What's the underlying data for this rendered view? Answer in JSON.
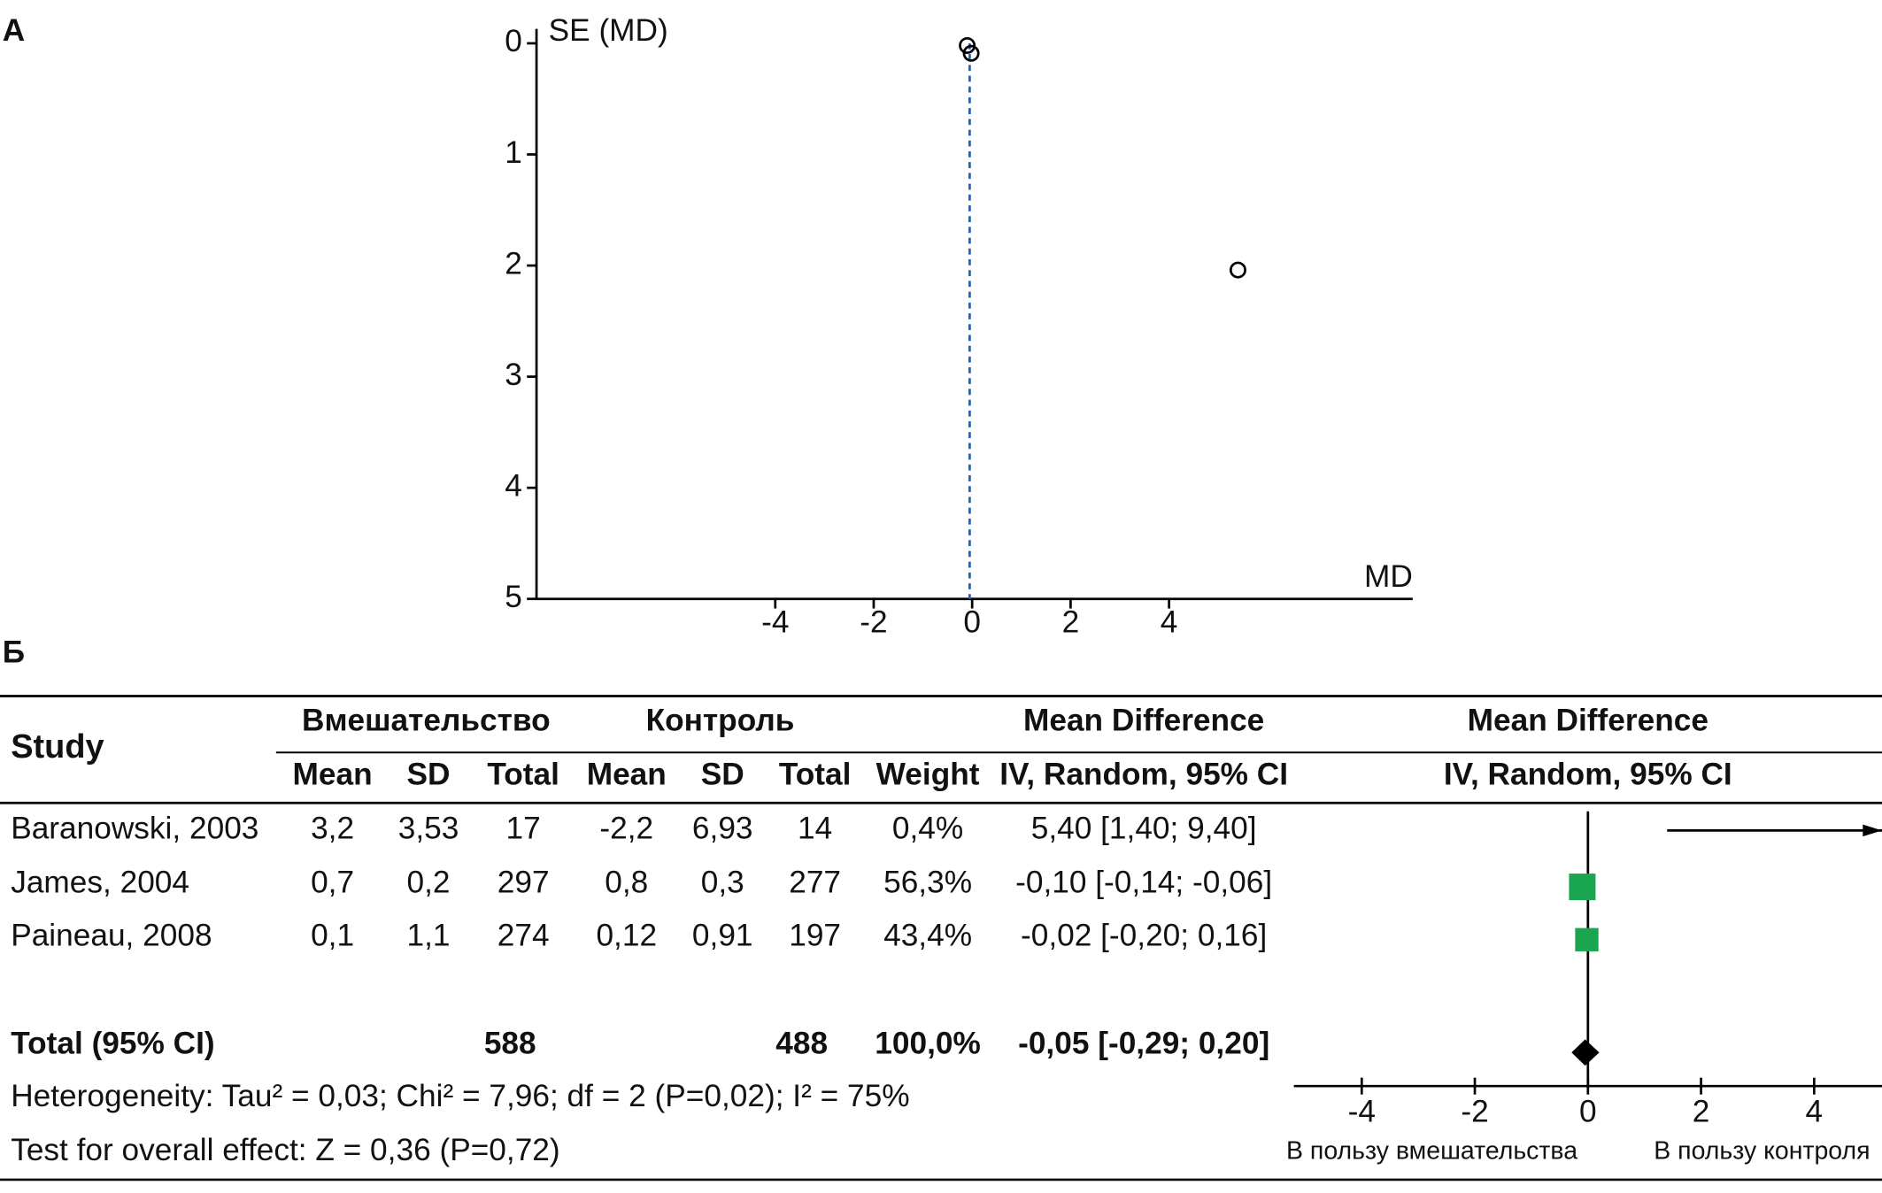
{
  "chart_data": [
    {
      "type": "scatter",
      "panel": "А",
      "y_label": "SE (MD)",
      "x_label": "MD",
      "x": [
        -0.1,
        -0.02,
        5.4
      ],
      "values": [
        0.02,
        0.09,
        2.04
      ],
      "pooled": -0.05,
      "xlim": [
        -8.85,
        8.95
      ],
      "ylim": [
        0,
        5
      ],
      "y_reversed": true,
      "xticks": [
        -4,
        -2,
        0,
        2,
        4
      ],
      "yticks": [
        0,
        1,
        2,
        3,
        4,
        5
      ],
      "color": "#000000",
      "line_color": "#2a5fa0"
    },
    {
      "type": "forest",
      "panel": "Б",
      "table": {
        "study_header": "Study",
        "groups": [
          "Вмешательство",
          "Контроль",
          "Mean Difference",
          "Mean Difference"
        ],
        "subheaders": [
          "Mean",
          "SD",
          "Total",
          "Mean",
          "SD",
          "Total",
          "Weight",
          "IV, Random, 95% CI",
          "IV, Random, 95% CI"
        ],
        "rows": [
          [
            "Baranowski, 2003",
            "3,2",
            "3,53",
            "17",
            "-2,2",
            "6,93",
            "14",
            "0,4%",
            "5,40 [1,40; 9,40]"
          ],
          [
            "James, 2004",
            "0,7",
            "0,2",
            "297",
            "0,8",
            "0,3",
            "277",
            "56,3%",
            "-0,10 [-0,14; -0,06]"
          ],
          [
            "Paineau, 2008",
            "0,1",
            "1,1",
            "274",
            "0,12",
            "0,91",
            "197",
            "43,4%",
            "-0,02 [-0,20; 0,16]"
          ]
        ],
        "total": [
          "Total (95% CI)",
          "588",
          "488",
          "100,0%",
          "-0,05 [-0,29; 0,20]"
        ],
        "notes": [
          "Heterogeneity: Tau² = 0,03; Chi² = 7,96; df = 2 (P=0,02); I² = 75%",
          "Test for overall effect: Z = 0,36 (P=0,72)"
        ]
      },
      "values": [
        5.4,
        -0.1,
        -0.02
      ],
      "ci": [
        [
          1.4,
          9.4
        ],
        [
          -0.14,
          -0.06
        ],
        [
          -0.2,
          0.16
        ]
      ],
      "weights": [
        0.4,
        56.3,
        43.4
      ],
      "total_value": -0.05,
      "total_ci": [
        -0.29,
        0.2
      ],
      "xlim": [
        -5.2,
        5.2
      ],
      "xticks": [
        -4,
        -2,
        0,
        2,
        4
      ],
      "x_labels": [
        "В пользу вмешательства",
        "В пользу контроля"
      ],
      "color": "#1aa650"
    }
  ]
}
